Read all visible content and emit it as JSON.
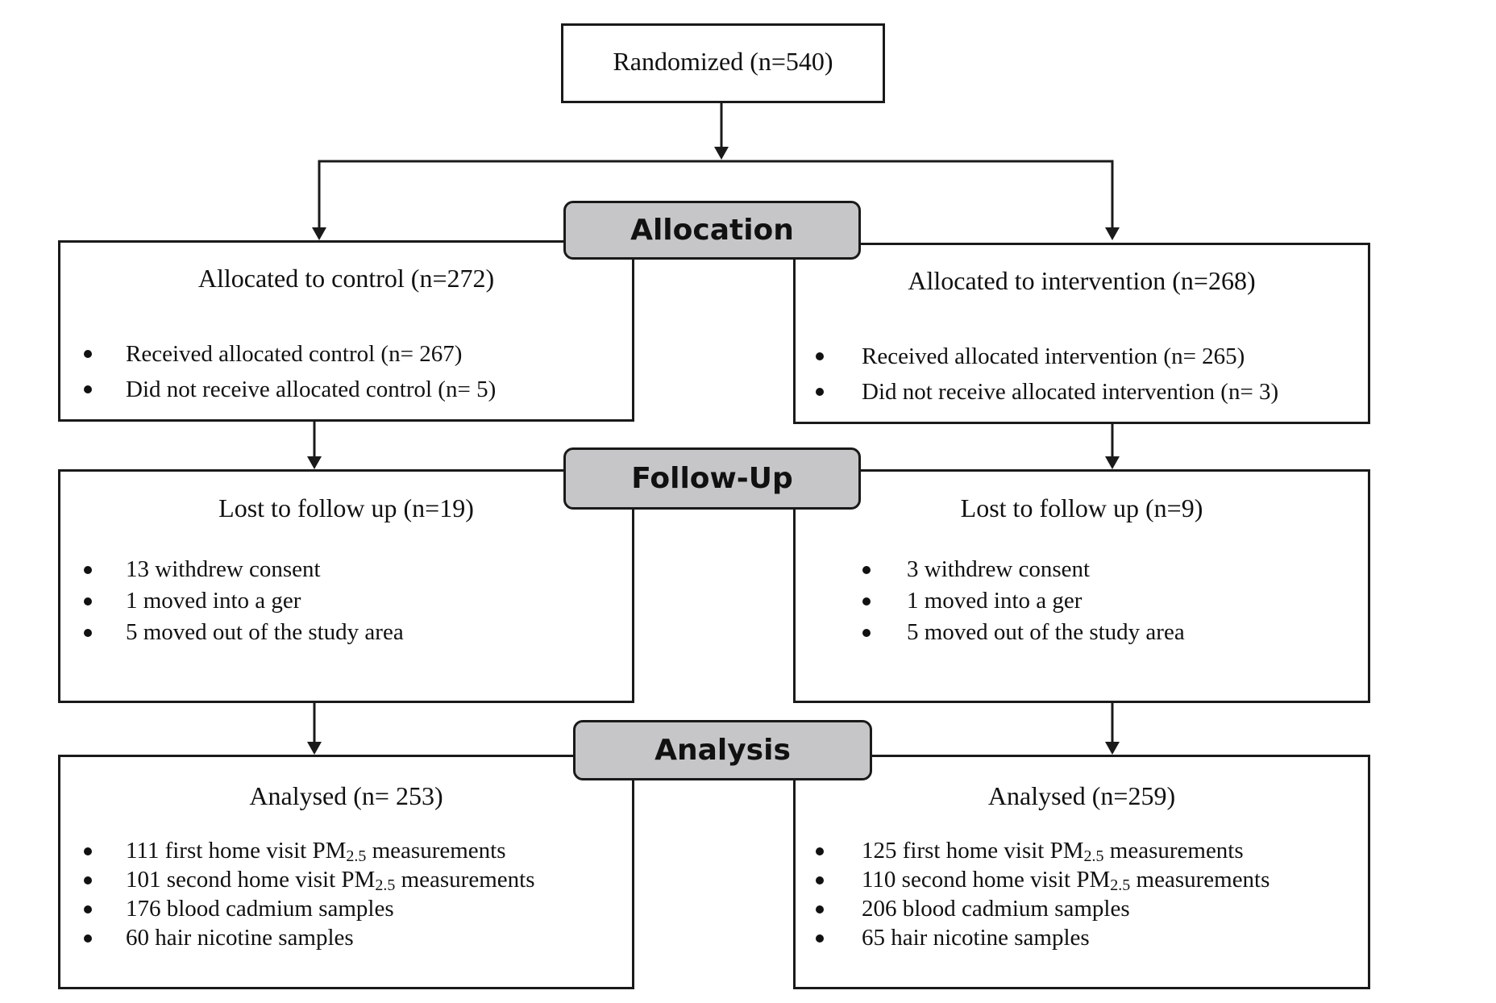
{
  "randomized": {
    "label": "Randomized (n=540)"
  },
  "stages": {
    "allocation": "Allocation",
    "followup": "Follow-Up",
    "analysis": "Analysis"
  },
  "control": {
    "allocation": {
      "title": "Allocated to control (n=272)",
      "items": [
        "Received allocated control (n= 267)",
        "Did not receive allocated control (n= 5)"
      ]
    },
    "followup": {
      "title": "Lost to follow up (n=19)",
      "items": [
        "13 withdrew consent",
        "1 moved into a ger",
        "5 moved out of the study area"
      ]
    },
    "analysis": {
      "title": "Analysed (n= 253)",
      "items": [
        {
          "pre": "111 first home visit PM",
          "sub": "2.5",
          "post": " measurements"
        },
        {
          "pre": "101 second home visit PM",
          "sub": "2.5",
          "post": " measurements"
        },
        {
          "pre": "176 blood cadmium samples"
        },
        {
          "pre": "60 hair nicotine samples"
        }
      ]
    }
  },
  "intervention": {
    "allocation": {
      "title": "Allocated to intervention (n=268)",
      "items": [
        "Received allocated intervention (n= 265)",
        "Did not receive allocated intervention (n= 3)"
      ]
    },
    "followup": {
      "title": "Lost to follow up (n=9)",
      "items": [
        "3 withdrew consent",
        "1 moved into a ger",
        "5 moved out of the study area"
      ]
    },
    "analysis": {
      "title": "Analysed (n=259)",
      "items": [
        {
          "pre": "125 first home visit PM",
          "sub": "2.5",
          "post": " measurements"
        },
        {
          "pre": "110 second home visit PM",
          "sub": "2.5",
          "post": " measurements"
        },
        {
          "pre": "206 blood cadmium samples"
        },
        {
          "pre": "65 hair nicotine samples"
        }
      ]
    }
  }
}
